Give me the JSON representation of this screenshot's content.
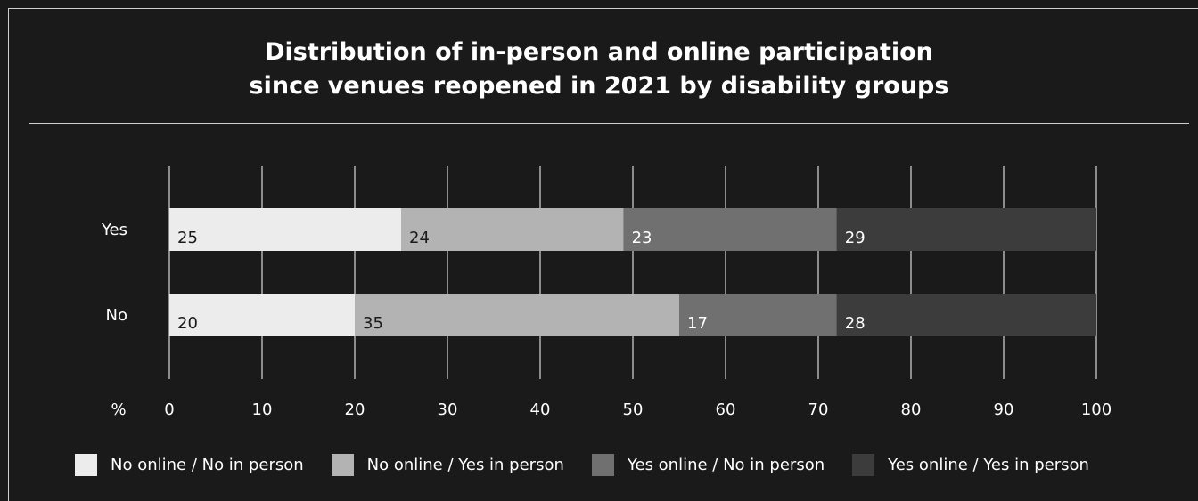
{
  "chart_data": {
    "type": "bar",
    "orientation": "horizontal",
    "stacked": true,
    "title": "Distribution of in-person and online participation since venues reopened in 2021 by disability groups",
    "title_lines": [
      "Distribution of in-person and online participation",
      "since venues reopened in 2021 by disability groups"
    ],
    "xlabel": "%",
    "ylabel": "",
    "xlim": [
      0,
      100
    ],
    "x_ticks": [
      0,
      10,
      20,
      30,
      40,
      50,
      60,
      70,
      80,
      90,
      100
    ],
    "grid": true,
    "legend_position": "bottom",
    "categories": [
      "Yes",
      "No"
    ],
    "series": [
      {
        "name": "No online / No in person",
        "values": [
          25,
          20
        ],
        "color": "#ececec"
      },
      {
        "name": "No online / Yes in person",
        "values": [
          24,
          35
        ],
        "color": "#b3b3b3"
      },
      {
        "name": "Yes online / No in person",
        "values": [
          23,
          17
        ],
        "color": "#707070"
      },
      {
        "name": "Yes online / Yes in person",
        "values": [
          29,
          28
        ],
        "color": "#3c3c3c"
      }
    ]
  },
  "colors": {
    "background": "#1a1a1a",
    "text": "#ffffff",
    "label_on_light": "#1a1a1a",
    "label_on_dark": "#ffffff",
    "gridline": "#ffffff"
  }
}
